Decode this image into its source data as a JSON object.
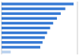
{
  "chart_data": {
    "type": "bar",
    "orientation": "horizontal",
    "values": [
      95,
      84,
      78,
      73,
      68,
      64,
      60,
      57,
      54,
      51,
      12
    ],
    "colors": [
      "#3579d4",
      "#3579d4",
      "#3579d4",
      "#3579d4",
      "#3579d4",
      "#3579d4",
      "#3579d4",
      "#3579d4",
      "#3579d4",
      "#3579d4",
      "#b8d0ee"
    ],
    "xlim": [
      0,
      100
    ],
    "grid": false,
    "tick_labels": false
  }
}
